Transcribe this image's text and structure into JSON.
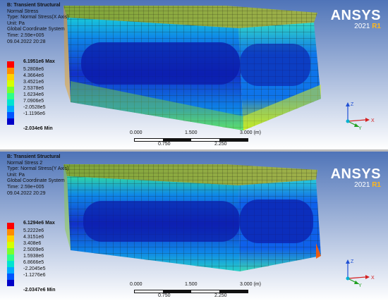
{
  "panels": [
    {
      "id": "panel-1",
      "info": {
        "title": "B: Transient Structural",
        "lines": [
          "Normal Stress",
          "Type: Normal Stress(X Axis)",
          "Unit: Pa",
          "Global Coordinate System",
          "Time: 2.59e+005",
          "09.04.2022 20:28"
        ]
      },
      "legend": {
        "max_label": "6.1951e6 Max",
        "values": [
          "5.2808e6",
          "4.3664e6",
          "3.4521e6",
          "2.5378e6",
          "1.6234e6",
          "7.0906e5",
          "-2.0528e5",
          "-1.1196e6"
        ],
        "min_label": "-2.034e6 Min"
      }
    },
    {
      "id": "panel-2",
      "info": {
        "title": "B: Transient Structural",
        "lines": [
          "Normal Stress 2",
          "Type: Normal Stress(Y Axis)",
          "Unit: Pa",
          "Global Coordinate System",
          "Time: 2.59e+005",
          "09.04.2022 20:29"
        ]
      },
      "legend": {
        "max_label": "6.1294e6 Max",
        "values": [
          "5.2222e6",
          "4.3151e6",
          "3.408e6",
          "2.5009e6",
          "1.5938e6",
          "6.8666e5",
          "-2.2045e5",
          "-1.1276e6"
        ],
        "min_label": "-2.0347e6 Min"
      }
    }
  ],
  "legend_colors": [
    "#ff0000",
    "#ff8c00",
    "#ffd200",
    "#d6ff00",
    "#7cff2a",
    "#2dff8a",
    "#00e3d0",
    "#00aaff",
    "#0055ff",
    "#0000c8"
  ],
  "brand": {
    "name": "ANSYS",
    "year": "2021",
    "release": "R1"
  },
  "scale": {
    "labels": [
      "0.000",
      "1.500",
      "3.000 (m)"
    ],
    "sub_labels": [
      "0.750",
      "2.250"
    ]
  },
  "triad": {
    "x": "X",
    "y": "Y",
    "z": "Z"
  },
  "colors": {
    "background_top": "#4f74b8",
    "background_bottom": "#ffffff",
    "mesh_line": "#1a2a2a"
  }
}
